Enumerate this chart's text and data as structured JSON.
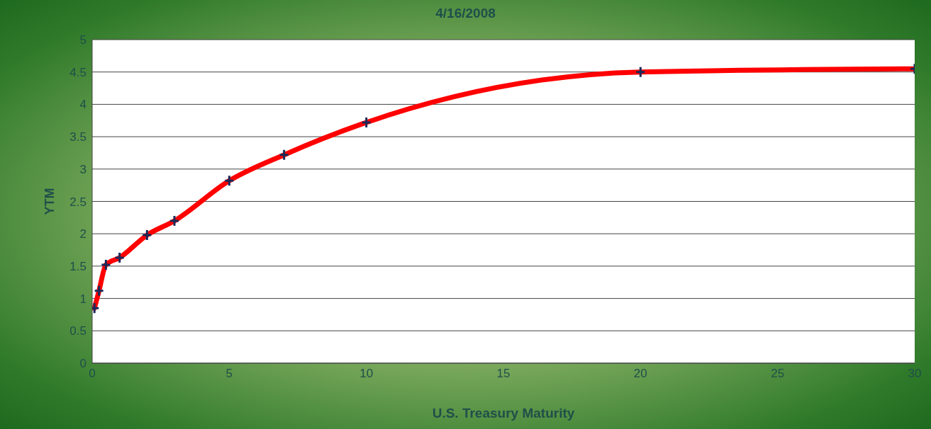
{
  "chart_data": {
    "type": "line",
    "title": "4/16/2008",
    "xlabel": "U.S. Treasury Maturity",
    "ylabel": "YTM",
    "x": [
      0.083,
      0.25,
      0.5,
      1,
      2,
      3,
      5,
      7,
      10,
      20,
      30
    ],
    "series": [
      {
        "color": "#ff0000",
        "values": [
          0.85,
          1.12,
          1.52,
          1.63,
          1.98,
          2.2,
          2.82,
          3.22,
          3.72,
          4.5,
          4.55
        ]
      }
    ],
    "xlim": [
      0,
      30
    ],
    "xticks": [
      0,
      5,
      10,
      15,
      20,
      25,
      30
    ],
    "ylim": [
      0,
      5
    ],
    "yticks": [
      0,
      0.5,
      1,
      1.5,
      2,
      2.5,
      3,
      3.5,
      4,
      4.5,
      5
    ],
    "grid": "y",
    "legend": false,
    "marker": "cross",
    "line_style": "solid"
  }
}
